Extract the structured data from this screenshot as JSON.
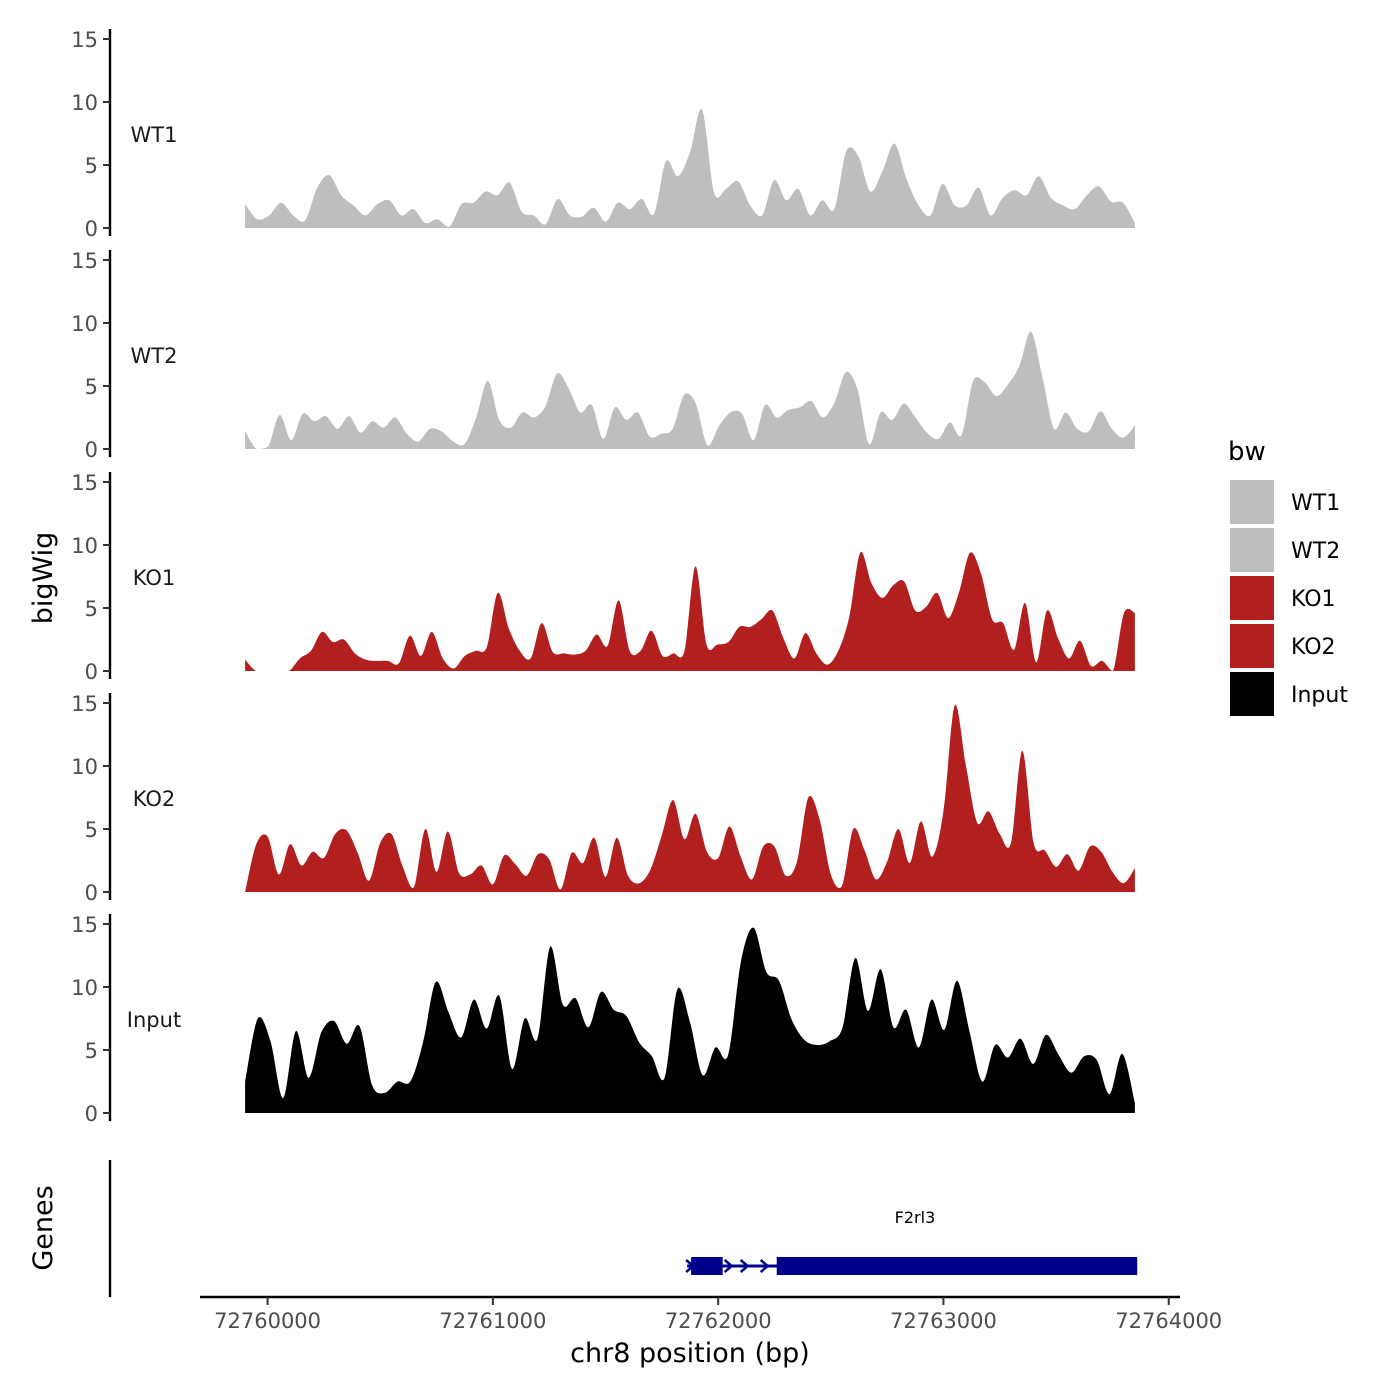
{
  "chart_data": {
    "type": "area",
    "description_note": "Genome browser coverage tracks (bigWig) with gene annotation",
    "y_axis_title": "bigWig",
    "genes_axis_title": "Genes",
    "x_axis_title": "chr8 position (bp)",
    "x_range": [
      72759700,
      72764050
    ],
    "x_ticks": [
      72760000,
      72761000,
      72762000,
      72763000,
      72764000
    ],
    "x_tick_labels": [
      "72760000",
      "72761000",
      "72762000",
      "72763000",
      "72764000"
    ],
    "data_x_range": [
      72759900,
      72763850
    ],
    "ylim": [
      0,
      15
    ],
    "y_ticks": [
      0,
      5,
      10,
      15
    ],
    "y_tick_labels": [
      "0",
      "5",
      "10",
      "15"
    ],
    "legend": {
      "title": "bw",
      "placement": "right",
      "entries": [
        {
          "label": "WT1",
          "color": "#bebebe"
        },
        {
          "label": "WT2",
          "color": "#bebebe"
        },
        {
          "label": "KO1",
          "color": "#b21f1f"
        },
        {
          "label": "KO2",
          "color": "#b21f1f"
        },
        {
          "label": "Input",
          "color": "#000000"
        }
      ]
    },
    "series": [
      {
        "name": "WT1",
        "color": "#bebebe",
        "values": [
          1.9,
          0.7,
          1.0,
          2.0,
          1.0,
          0.6,
          3.2,
          4.2,
          2.6,
          1.8,
          1.0,
          1.9,
          2.2,
          1.0,
          1.5,
          0.4,
          0.7,
          0.1,
          1.9,
          2.0,
          2.9,
          2.6,
          3.6,
          1.3,
          1.0,
          0.3,
          2.3,
          1.0,
          0.9,
          1.6,
          0.5,
          2.0,
          1.5,
          2.3,
          1.1,
          5.3,
          4.1,
          6.0,
          9.4,
          2.8,
          3.1,
          3.7,
          1.8,
          1.0,
          3.8,
          2.2,
          3.1,
          1.0,
          2.2,
          1.5,
          6.1,
          5.7,
          2.9,
          4.5,
          6.7,
          3.9,
          1.8,
          1.0,
          3.5,
          1.8,
          1.8,
          3.2,
          1.0,
          2.4,
          3.0,
          2.6,
          4.1,
          2.4,
          1.8,
          1.5,
          2.6,
          3.3,
          2.1,
          2.0,
          0.4
        ]
      },
      {
        "name": "WT2",
        "color": "#bebebe",
        "values": [
          1.4,
          0.0,
          0.2,
          2.7,
          0.7,
          2.8,
          2.2,
          2.6,
          1.6,
          2.6,
          1.3,
          2.2,
          1.7,
          2.5,
          1.2,
          0.6,
          1.6,
          1.4,
          0.6,
          0.4,
          2.5,
          5.4,
          2.3,
          1.7,
          2.9,
          2.5,
          3.4,
          6.0,
          4.8,
          2.9,
          3.5,
          0.8,
          3.3,
          2.3,
          2.9,
          1.0,
          1.2,
          1.6,
          4.3,
          3.6,
          0.3,
          1.8,
          2.9,
          2.8,
          0.7,
          3.5,
          2.5,
          3.1,
          3.3,
          3.8,
          2.5,
          3.7,
          6.1,
          4.7,
          0.4,
          2.9,
          2.3,
          3.6,
          2.5,
          1.3,
          0.8,
          2.1,
          1.1,
          5.4,
          5.3,
          4.2,
          5.1,
          6.6,
          9.3,
          5.7,
          1.6,
          2.9,
          1.6,
          1.4,
          3.0,
          1.6,
          0.9,
          1.9
        ]
      },
      {
        "name": "KO1",
        "color": "#b21f1f",
        "values": [
          0.9,
          0.0,
          0.0,
          0.0,
          0.0,
          1.0,
          1.6,
          3.1,
          2.3,
          2.5,
          1.4,
          0.9,
          0.8,
          0.8,
          0.6,
          2.8,
          1.2,
          3.1,
          1.0,
          0.2,
          1.2,
          1.6,
          1.9,
          6.2,
          3.4,
          1.6,
          1.0,
          3.8,
          1.5,
          1.4,
          1.3,
          1.6,
          2.9,
          2.0,
          5.6,
          1.6,
          1.6,
          3.2,
          1.2,
          1.4,
          1.6,
          8.3,
          2.1,
          2.1,
          2.3,
          3.5,
          3.5,
          4.1,
          4.8,
          2.6,
          1.0,
          3.0,
          1.4,
          0.5,
          1.6,
          4.3,
          9.4,
          7.0,
          5.8,
          6.8,
          7.1,
          4.8,
          5.1,
          6.2,
          4.2,
          6.3,
          9.4,
          7.7,
          4.1,
          3.8,
          1.7,
          5.4,
          0.7,
          4.8,
          2.6,
          1.0,
          2.4,
          0.4,
          0.8,
          0.0,
          4.6,
          4.6
        ]
      },
      {
        "name": "KO2",
        "color": "#b21f1f",
        "values": [
          0.0,
          3.8,
          4.4,
          1.4,
          3.8,
          2.1,
          3.2,
          2.7,
          4.6,
          4.9,
          3.1,
          0.9,
          3.9,
          4.6,
          2.0,
          0.4,
          5.0,
          1.6,
          4.8,
          1.5,
          1.4,
          2.1,
          0.6,
          2.9,
          2.2,
          1.3,
          3.0,
          2.6,
          0.2,
          3.1,
          2.3,
          4.3,
          1.2,
          4.3,
          1.3,
          0.7,
          1.8,
          4.5,
          7.3,
          4.2,
          6.2,
          3.2,
          2.7,
          5.2,
          2.8,
          1.0,
          3.6,
          3.6,
          1.3,
          2.4,
          7.5,
          5.8,
          1.4,
          0.5,
          5.0,
          3.3,
          1.0,
          2.4,
          5.0,
          2.3,
          5.6,
          2.8,
          6.4,
          14.8,
          10.0,
          5.5,
          6.4,
          4.6,
          3.9,
          11.2,
          3.9,
          3.3,
          2.0,
          3.0,
          1.7,
          3.6,
          3.2,
          1.6,
          0.7,
          1.9
        ]
      },
      {
        "name": "Input",
        "color": "#000000",
        "values": [
          2.5,
          7.5,
          5.7,
          1.2,
          6.5,
          2.8,
          6.4,
          7.3,
          5.5,
          6.9,
          2.2,
          1.6,
          2.5,
          2.5,
          5.6,
          10.4,
          8.0,
          6.0,
          9.0,
          6.7,
          9.3,
          3.5,
          7.5,
          5.9,
          13.2,
          8.6,
          9.1,
          6.8,
          9.6,
          8.2,
          7.7,
          5.6,
          4.5,
          2.8,
          9.8,
          7.2,
          3.0,
          5.2,
          4.6,
          12.0,
          14.7,
          11.2,
          10.5,
          7.4,
          5.8,
          5.4,
          5.7,
          6.8,
          12.3,
          8.1,
          11.4,
          6.8,
          8.2,
          5.2,
          9.0,
          6.6,
          10.5,
          6.4,
          2.5,
          5.4,
          4.4,
          5.9,
          3.9,
          6.2,
          4.6,
          3.2,
          4.5,
          4.2,
          1.5,
          4.7,
          0.8
        ]
      }
    ],
    "genes": [
      {
        "name": "F2rl3",
        "start": 72761880,
        "end": 72763860,
        "strand": "+",
        "color": "#00008b",
        "exons": [
          [
            72761880,
            72762020
          ],
          [
            72762260,
            72763860
          ]
        ]
      }
    ]
  }
}
